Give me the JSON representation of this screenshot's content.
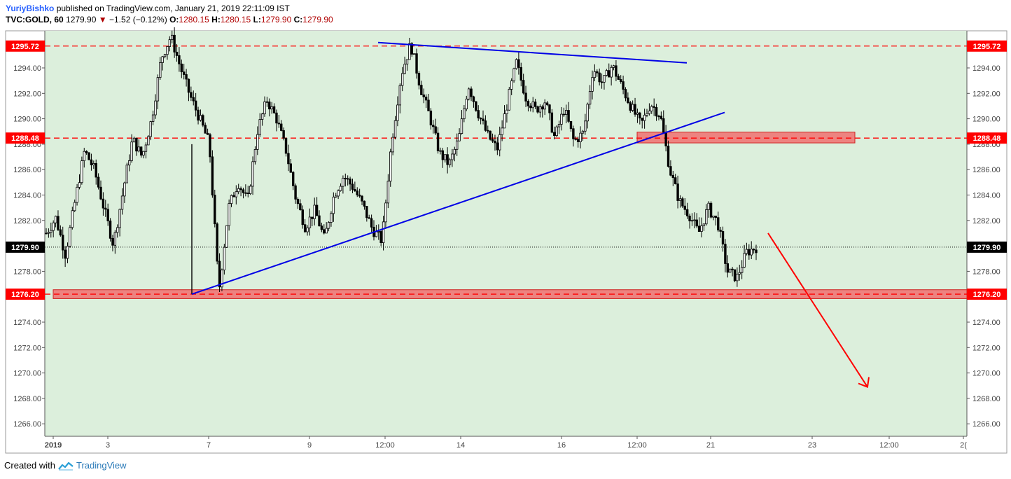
{
  "header": {
    "author": "YuriyBishko",
    "published": "published on TradingView.com, January 21, 2019 22:11:09 IST",
    "symbol": "TVC:GOLD, 60",
    "last": "1279.90",
    "arrow": "▼",
    "change": "−1.52 (−0.12%)",
    "o_label": "O:",
    "o_val": "1280.15",
    "h_label": "H:",
    "h_val": "1280.15",
    "l_label": "L:",
    "l_val": "1279.90",
    "c_label": "C:",
    "c_val": "1279.90"
  },
  "footer": {
    "created": "Created with",
    "brand": "TradingView"
  },
  "colors": {
    "plot_bg": "#dcefdc",
    "level_red": "#ff0000",
    "zone_fill": "#f07070",
    "trend_blue": "#0000e6",
    "candle": "#000000",
    "price_tag_bg": "#000000"
  },
  "chart_data": {
    "type": "candlestick",
    "title": "",
    "ylim": [
      1264.4,
      1296.8
    ],
    "y_ticks": [
      "1266.00",
      "1268.00",
      "1270.00",
      "1272.00",
      "1274.00",
      "1276.00",
      "1278.00",
      "1280.00",
      "1282.00",
      "1284.00",
      "1286.00",
      "1288.00",
      "1290.00",
      "1292.00",
      "1294.00"
    ],
    "x_ticks": [
      "2019",
      "3",
      "7",
      "9",
      "12:00",
      "14",
      "16",
      "12:00",
      "21",
      "23",
      "12:00",
      "2("
    ],
    "levels": [
      {
        "label": "1295.72",
        "value": 1295.72
      },
      {
        "label": "1288.48",
        "value": 1288.48
      },
      {
        "label": "1276.20",
        "value": 1276.2
      }
    ],
    "current_price": {
      "label": "1279.90",
      "value": 1279.9
    },
    "zones": [
      {
        "from_x": "7",
        "to_x": "23",
        "low": 1275.85,
        "high": 1276.55
      },
      {
        "from_x": "12:00",
        "to_x": "23",
        "low": 1288.1,
        "high": 1288.95
      }
    ],
    "trendlines": [
      {
        "name": "resistance",
        "from": [
          1,
          1296.0
        ],
        "to": [
          2,
          1294.4
        ]
      },
      {
        "name": "support",
        "from": [
          0,
          1276.2
        ],
        "to": [
          2,
          1290.5
        ]
      }
    ],
    "projection": {
      "from": 1281.0,
      "to": 1268.9
    },
    "price_path": [
      1281.0,
      1282.2,
      1279.3,
      1283.5,
      1287.5,
      1286.0,
      1283.0,
      1280.1,
      1284.3,
      1288.4,
      1287.0,
      1290.0,
      1294.8,
      1296.5,
      1294.0,
      1291.8,
      1290.0,
      1288.0,
      1276.4,
      1283.0,
      1285.0,
      1283.5,
      1289.0,
      1291.5,
      1290.0,
      1287.5,
      1283.8,
      1281.5,
      1282.8,
      1280.5,
      1284.0,
      1285.5,
      1284.6,
      1283.2,
      1281.3,
      1280.4,
      1288.2,
      1293.5,
      1295.9,
      1292.5,
      1290.1,
      1287.3,
      1286.4,
      1288.4,
      1292.7,
      1290.5,
      1288.7,
      1287.6,
      1291.0,
      1294.4,
      1291.7,
      1290.7,
      1291.4,
      1288.5,
      1290.8,
      1288.2,
      1288.9,
      1294.0,
      1292.8,
      1294.2,
      1292.5,
      1290.9,
      1289.5,
      1291.2,
      1290.3,
      1286.0,
      1283.5,
      1282.5,
      1281.0,
      1283.0,
      1281.8,
      1278.0,
      1277.5,
      1279.5,
      1279.9
    ]
  }
}
